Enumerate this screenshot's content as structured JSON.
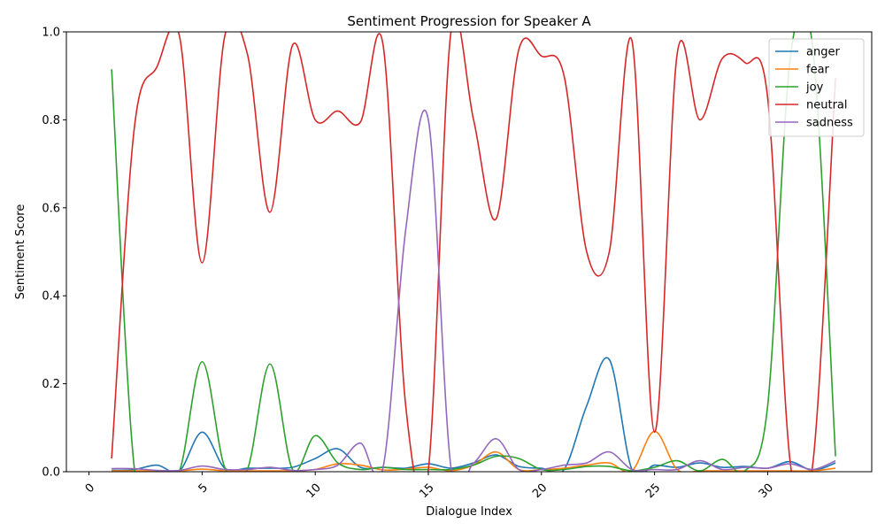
{
  "chart_data": {
    "type": "line",
    "title": "Sentiment Progression for Speaker A",
    "xlabel": "Dialogue Index",
    "ylabel": "Sentiment Score",
    "xlim": [
      -1,
      34.6
    ],
    "ylim": [
      0,
      1
    ],
    "xticks": [
      0,
      5,
      10,
      15,
      20,
      25,
      30
    ],
    "yticks": [
      0.0,
      0.2,
      0.4,
      0.6,
      0.8,
      1.0
    ],
    "x_tick_rotation": 45,
    "grid": false,
    "legend_position": "top-right",
    "x": [
      1,
      2,
      3,
      4,
      5,
      6,
      7,
      8,
      9,
      10,
      11,
      12,
      13,
      14,
      15,
      16,
      17,
      18,
      19,
      20,
      21,
      22,
      23,
      24,
      25,
      26,
      27,
      28,
      29,
      30,
      31,
      32,
      33
    ],
    "series": [
      {
        "name": "anger",
        "color": "#1f77b4",
        "values": [
          0.003,
          0.005,
          0.015,
          0.002,
          0.09,
          0.008,
          0.008,
          0.008,
          0.01,
          0.03,
          0.052,
          0.01,
          0.01,
          0.008,
          0.018,
          0.008,
          0.02,
          0.038,
          0.012,
          0.008,
          0.005,
          0.15,
          0.255,
          0.005,
          0.015,
          0.01,
          0.02,
          0.01,
          0.012,
          0.008,
          0.023,
          0.003,
          0.02
        ]
      },
      {
        "name": "fear",
        "color": "#ff7f0e",
        "values": [
          0.002,
          0.002,
          0.002,
          0.002,
          0.006,
          0.002,
          0.002,
          0.002,
          0.002,
          0.005,
          0.018,
          0.015,
          0.004,
          0.006,
          0.01,
          0.002,
          0.015,
          0.045,
          0.005,
          0.005,
          0.008,
          0.015,
          0.02,
          0.002,
          0.092,
          0.005,
          0.002,
          0.002,
          0.002,
          0.002,
          0.002,
          0.002,
          0.008
        ]
      },
      {
        "name": "joy",
        "color": "#2ca02c",
        "values": [
          0.915,
          0.01,
          0.002,
          0.002,
          0.25,
          0.01,
          0.005,
          0.245,
          0.005,
          0.082,
          0.02,
          0.005,
          0.01,
          0.005,
          0.005,
          0.005,
          0.015,
          0.035,
          0.03,
          0.005,
          0.005,
          0.012,
          0.012,
          0.002,
          0.01,
          0.025,
          0.002,
          0.028,
          0.002,
          0.15,
          0.94,
          0.96,
          0.035
        ]
      },
      {
        "name": "neutral",
        "color": "#d62728",
        "values": [
          0.03,
          0.78,
          0.92,
          0.99,
          0.475,
          0.99,
          0.95,
          0.59,
          0.97,
          0.8,
          0.82,
          0.795,
          0.97,
          0.15,
          0.005,
          1.0,
          0.8,
          0.575,
          0.96,
          0.945,
          0.9,
          0.5,
          0.5,
          0.98,
          0.09,
          0.95,
          0.8,
          0.94,
          0.93,
          0.85,
          0.02,
          0.02,
          0.895
        ]
      },
      {
        "name": "sadness",
        "color": "#9467bd",
        "values": [
          0.007,
          0.007,
          0.003,
          0.003,
          0.013,
          0.005,
          0.005,
          0.01,
          0.003,
          0.005,
          0.015,
          0.065,
          0.01,
          0.55,
          0.8,
          0.01,
          0.02,
          0.075,
          0.005,
          0.005,
          0.015,
          0.02,
          0.045,
          0.005,
          0.005,
          0.005,
          0.025,
          0.005,
          0.01,
          0.008,
          0.018,
          0.005,
          0.025
        ]
      }
    ]
  }
}
